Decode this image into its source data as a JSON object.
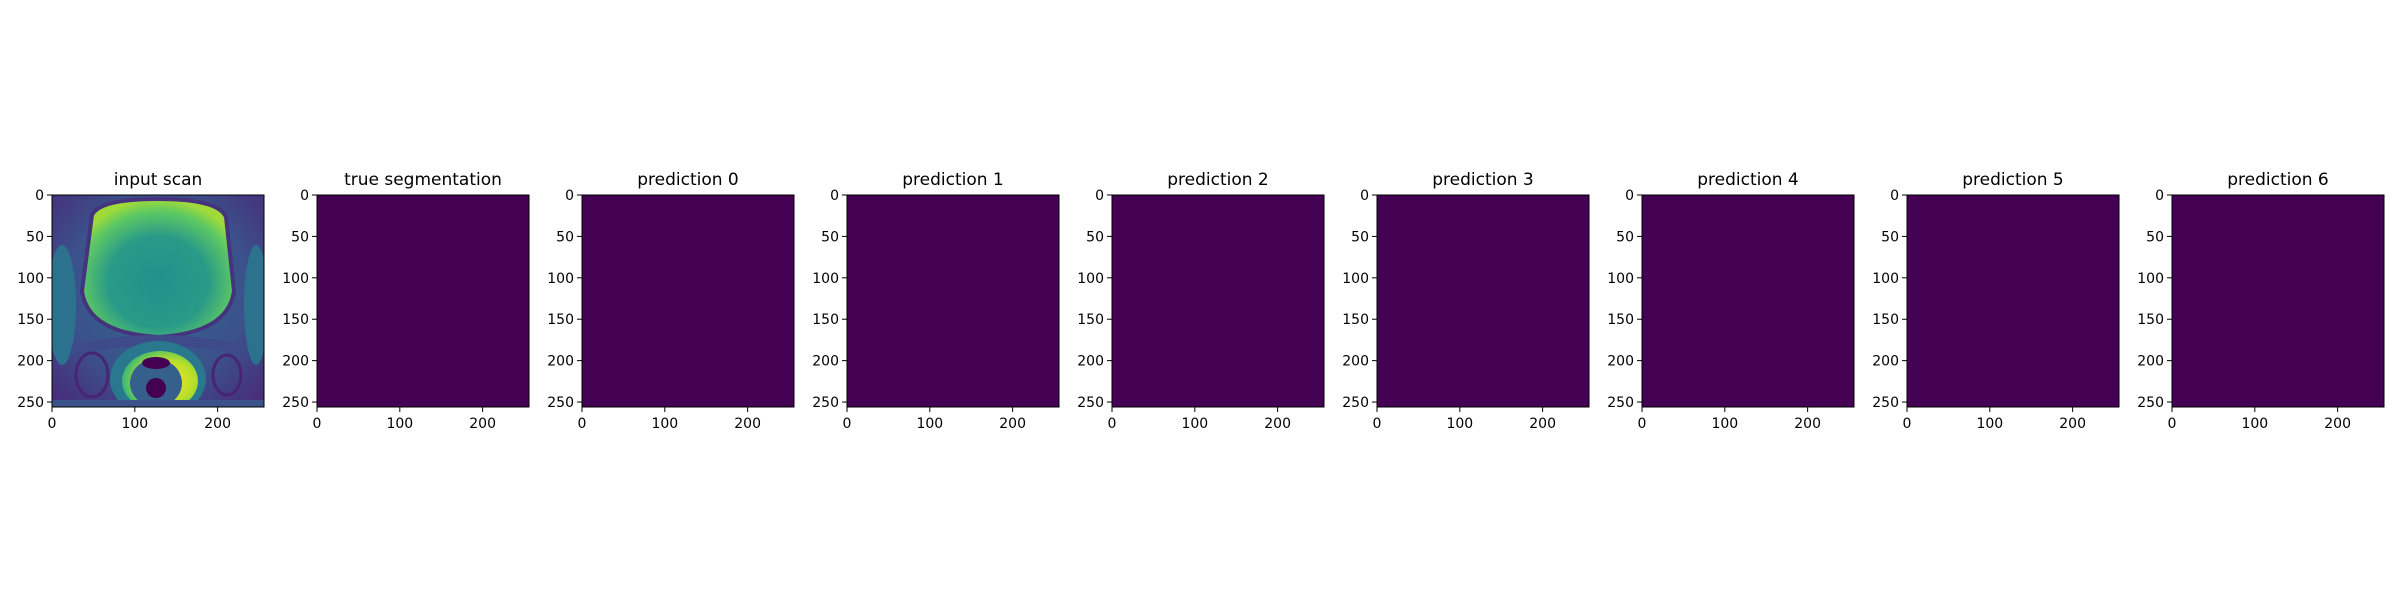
{
  "chart_data": [
    {
      "type": "heatmap",
      "title": "input scan",
      "content": "scan",
      "xlim": [
        0,
        256
      ],
      "ylim": [
        256,
        0
      ],
      "xticks": [
        0,
        100,
        200
      ],
      "yticks": [
        0,
        50,
        100,
        150,
        200,
        250
      ],
      "colormap": "viridis"
    },
    {
      "type": "heatmap",
      "title": "true segmentation",
      "content": "uniform",
      "value": 0,
      "fill": "#440154",
      "xlim": [
        0,
        256
      ],
      "ylim": [
        256,
        0
      ],
      "xticks": [
        0,
        100,
        200
      ],
      "yticks": [
        0,
        50,
        100,
        150,
        200,
        250
      ]
    },
    {
      "type": "heatmap",
      "title": "prediction 0",
      "content": "uniform",
      "value": 0,
      "fill": "#440154",
      "xlim": [
        0,
        256
      ],
      "ylim": [
        256,
        0
      ],
      "xticks": [
        0,
        100,
        200
      ],
      "yticks": [
        0,
        50,
        100,
        150,
        200,
        250
      ]
    },
    {
      "type": "heatmap",
      "title": "prediction 1",
      "content": "uniform",
      "value": 0,
      "fill": "#440154",
      "xlim": [
        0,
        256
      ],
      "ylim": [
        256,
        0
      ],
      "xticks": [
        0,
        100,
        200
      ],
      "yticks": [
        0,
        50,
        100,
        150,
        200,
        250
      ]
    },
    {
      "type": "heatmap",
      "title": "prediction 2",
      "content": "uniform",
      "value": 0,
      "fill": "#440154",
      "xlim": [
        0,
        256
      ],
      "ylim": [
        256,
        0
      ],
      "xticks": [
        0,
        100,
        200
      ],
      "yticks": [
        0,
        50,
        100,
        150,
        200,
        250
      ]
    },
    {
      "type": "heatmap",
      "title": "prediction 3",
      "content": "uniform",
      "value": 0,
      "fill": "#440154",
      "xlim": [
        0,
        256
      ],
      "ylim": [
        256,
        0
      ],
      "xticks": [
        0,
        100,
        200
      ],
      "yticks": [
        0,
        50,
        100,
        150,
        200,
        250
      ]
    },
    {
      "type": "heatmap",
      "title": "prediction 4",
      "content": "uniform",
      "value": 0,
      "fill": "#440154",
      "xlim": [
        0,
        256
      ],
      "ylim": [
        256,
        0
      ],
      "xticks": [
        0,
        100,
        200
      ],
      "yticks": [
        0,
        50,
        100,
        150,
        200,
        250
      ]
    },
    {
      "type": "heatmap",
      "title": "prediction 5",
      "content": "uniform",
      "value": 0,
      "fill": "#440154",
      "xlim": [
        0,
        256
      ],
      "ylim": [
        256,
        0
      ],
      "xticks": [
        0,
        100,
        200
      ],
      "yticks": [
        0,
        50,
        100,
        150,
        200,
        250
      ]
    },
    {
      "type": "heatmap",
      "title": "prediction 6",
      "content": "uniform",
      "value": 0,
      "fill": "#440154",
      "xlim": [
        0,
        256
      ],
      "ylim": [
        256,
        0
      ],
      "xticks": [
        0,
        100,
        200
      ],
      "yticks": [
        0,
        50,
        100,
        150,
        200,
        250
      ]
    }
  ]
}
